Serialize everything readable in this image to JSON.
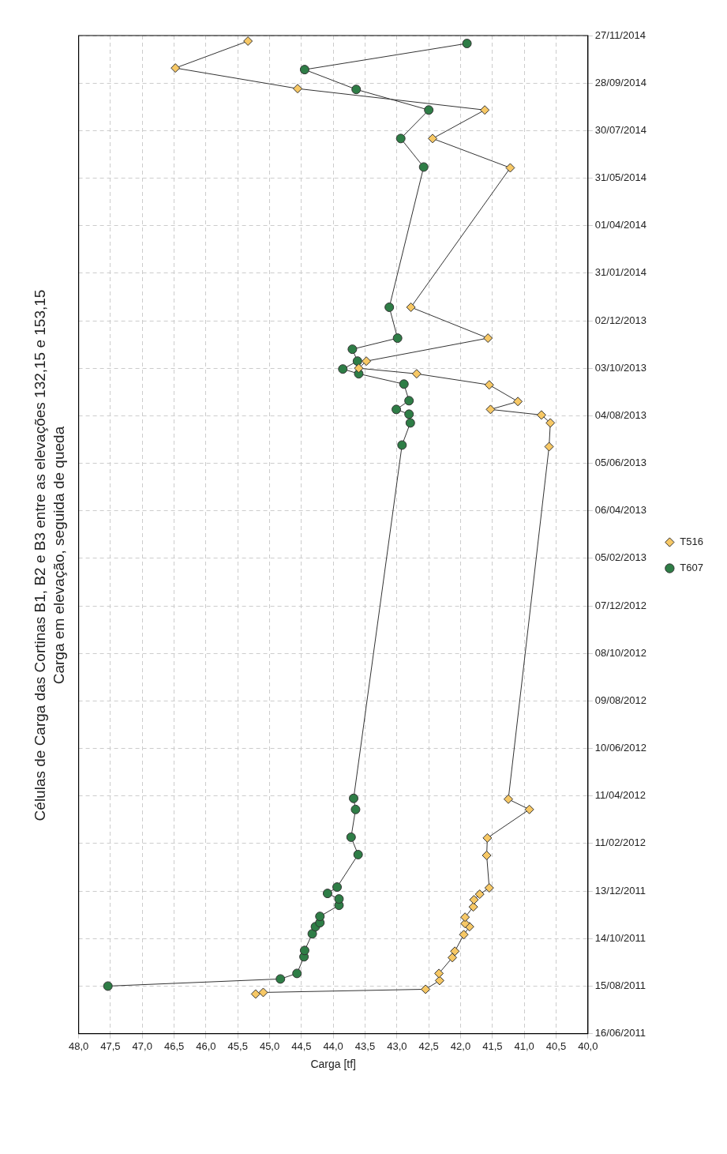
{
  "chart_data": {
    "type": "line",
    "orientation": "horizontal",
    "title": "Células de Carga das Cortinas B1, B2 e B3 entre as elevações 132,15 e 153,15",
    "subtitle": "Carga em elevação, seguida de queda",
    "xlabel": "Carga [tf]",
    "ylim": [
      "2011-06-16",
      "2014-11-27"
    ],
    "yticks": [
      {
        "value": "2011-06-16",
        "label": "16/06/2011"
      },
      {
        "value": "2011-08-15",
        "label": "15/08/2011"
      },
      {
        "value": "2011-10-14",
        "label": "14/10/2011"
      },
      {
        "value": "2011-12-13",
        "label": "13/12/2011"
      },
      {
        "value": "2012-02-11",
        "label": "11/02/2012"
      },
      {
        "value": "2012-04-11",
        "label": "11/04/2012"
      },
      {
        "value": "2012-06-10",
        "label": "10/06/2012"
      },
      {
        "value": "2012-08-09",
        "label": "09/08/2012"
      },
      {
        "value": "2012-10-08",
        "label": "08/10/2012"
      },
      {
        "value": "2012-12-07",
        "label": "07/12/2012"
      },
      {
        "value": "2013-02-05",
        "label": "05/02/2013"
      },
      {
        "value": "2013-04-06",
        "label": "06/04/2013"
      },
      {
        "value": "2013-06-05",
        "label": "05/06/2013"
      },
      {
        "value": "2013-08-04",
        "label": "04/08/2013"
      },
      {
        "value": "2013-10-03",
        "label": "03/10/2013"
      },
      {
        "value": "2013-12-02",
        "label": "02/12/2013"
      },
      {
        "value": "2014-01-31",
        "label": "31/01/2014"
      },
      {
        "value": "2014-04-01",
        "label": "01/04/2014"
      },
      {
        "value": "2014-05-31",
        "label": "31/05/2014"
      },
      {
        "value": "2014-07-30",
        "label": "30/07/2014"
      },
      {
        "value": "2014-09-28",
        "label": "28/09/2014"
      },
      {
        "value": "2014-11-27",
        "label": "27/11/2014"
      }
    ],
    "xlim": [
      48,
      40
    ],
    "xticks": [
      {
        "value": 48,
        "label": "48,0"
      },
      {
        "value": 47.5,
        "label": "47,5"
      },
      {
        "value": 47,
        "label": "47,0"
      },
      {
        "value": 46.5,
        "label": "46,5"
      },
      {
        "value": 46,
        "label": "46,0"
      },
      {
        "value": 45.5,
        "label": "45,5"
      },
      {
        "value": 45,
        "label": "45,0"
      },
      {
        "value": 44.5,
        "label": "44,5"
      },
      {
        "value": 44,
        "label": "44,0"
      },
      {
        "value": 43.5,
        "label": "43,5"
      },
      {
        "value": 43,
        "label": "43,0"
      },
      {
        "value": 42.5,
        "label": "42,5"
      },
      {
        "value": 42,
        "label": "42,0"
      },
      {
        "value": 41.5,
        "label": "41,5"
      },
      {
        "value": 41,
        "label": "41,0"
      },
      {
        "value": 40.5,
        "label": "40,5"
      },
      {
        "value": 40,
        "label": "40,0"
      }
    ],
    "grid": true,
    "legend": "right",
    "line_style": "solid",
    "series": [
      {
        "name": "T516",
        "color": "#f7c865",
        "marker": "diamond",
        "x": [
          "2011-08-05",
          "2011-08-07",
          "2011-08-11",
          "2011-08-22",
          "2011-08-31",
          "2011-09-20",
          "2011-09-28",
          "2011-10-19",
          "2011-10-29",
          "2011-11-02",
          "2011-11-10",
          "2011-11-23",
          "2011-12-02",
          "2011-12-09",
          "2011-12-17",
          "2012-01-27",
          "2012-02-18",
          "2012-03-25",
          "2012-04-07",
          "2013-06-26",
          "2013-07-26",
          "2013-08-05",
          "2013-08-12",
          "2013-08-22",
          "2013-09-12",
          "2013-09-26",
          "2013-10-03",
          "2013-10-12",
          "2013-11-10",
          "2013-12-19",
          "2014-06-13",
          "2014-07-20",
          "2014-08-25",
          "2014-09-21",
          "2014-10-17",
          "2014-11-20"
        ],
        "values": [
          45.22,
          45.1,
          42.55,
          42.33,
          42.34,
          42.13,
          42.09,
          41.95,
          41.86,
          41.93,
          41.93,
          41.8,
          41.79,
          41.7,
          41.55,
          41.59,
          41.58,
          40.92,
          41.25,
          40.61,
          40.59,
          40.73,
          41.53,
          41.1,
          41.55,
          42.69,
          43.6,
          43.48,
          41.57,
          42.78,
          41.22,
          42.44,
          41.62,
          44.56,
          46.48,
          45.34
        ]
      },
      {
        "name": "T607",
        "color": "#2e7d46",
        "marker": "circle",
        "x": [
          "2011-08-15",
          "2011-08-24",
          "2011-08-31",
          "2011-09-21",
          "2011-09-29",
          "2011-10-20",
          "2011-10-29",
          "2011-11-03",
          "2011-11-11",
          "2011-11-25",
          "2011-12-03",
          "2011-12-10",
          "2011-12-18",
          "2012-01-28",
          "2012-02-19",
          "2012-03-25",
          "2012-04-08",
          "2013-06-28",
          "2013-07-26",
          "2013-08-06",
          "2013-08-12",
          "2013-08-23",
          "2013-09-13",
          "2013-09-26",
          "2013-10-02",
          "2013-10-12",
          "2013-10-27",
          "2013-11-10",
          "2013-12-19",
          "2014-06-14",
          "2014-07-20",
          "2014-08-25",
          "2014-09-20",
          "2014-10-15",
          "2014-11-17"
        ],
        "values": [
          47.54,
          44.83,
          44.57,
          44.46,
          44.45,
          44.33,
          44.28,
          44.21,
          44.21,
          43.91,
          43.91,
          44.09,
          43.94,
          43.61,
          43.72,
          43.65,
          43.68,
          42.92,
          42.79,
          42.81,
          43.01,
          42.81,
          42.89,
          43.6,
          43.85,
          43.62,
          43.7,
          42.99,
          43.12,
          42.58,
          42.94,
          42.5,
          43.64,
          44.45,
          41.9
        ]
      }
    ]
  }
}
